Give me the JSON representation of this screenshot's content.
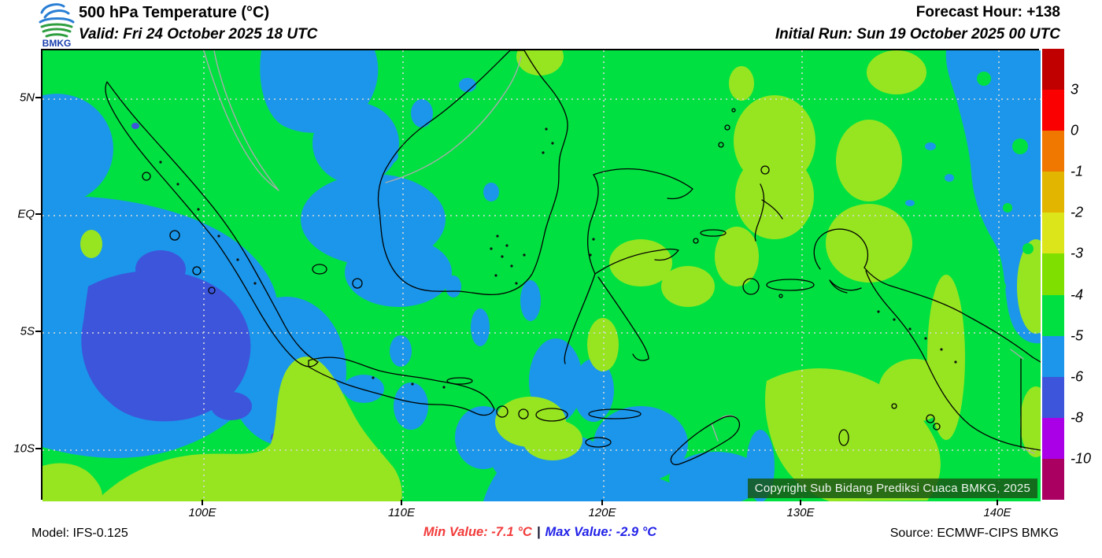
{
  "palette": {
    "green": "#00E141",
    "light_blue": "#1B96EA",
    "dark_blue": "#3D55DB",
    "yellow_green": "#97E520"
  },
  "header": {
    "logo_text": "BMKG",
    "title": "500 hPa Temperature (°C)",
    "valid": "Valid: Fri 24 October 2025 18 UTC",
    "forecast_hour": "Forecast Hour: +138",
    "initial_run": "Initial Run: Sun 19 October 2025 00 UTC"
  },
  "map": {
    "copyright": "Copyright Sub Bidang Prediksi Cuaca BMKG, 2025",
    "x_ticks": [
      "100E",
      "110E",
      "120E",
      "130E",
      "140E"
    ],
    "y_ticks": [
      "5N",
      "EQ",
      "5S",
      "10S"
    ]
  },
  "colorbar": {
    "tick_labels": [
      "3",
      "0",
      "-1",
      "-2",
      "-3",
      "-4",
      "-5",
      "-6",
      "-8",
      "-10"
    ],
    "colors": [
      "#C00000",
      "#FA0000",
      "#F07800",
      "#E2B600",
      "#DCE41A",
      "#7FE000",
      "#00E141",
      "#1B96EA",
      "#3D55DB",
      "#AA00E8",
      "#AA0062"
    ]
  },
  "footer": {
    "model": "Model: IFS-0.125",
    "min_label": "Min Value: -7.1 °C",
    "separator": "|",
    "max_label": "Max Value: -2.9 °C",
    "source": "Source: ECMWF-CIPS BMKG"
  },
  "chart_data": {
    "type": "heatmap",
    "title": "500 hPa Temperature (°C)",
    "units": "°C",
    "region": "Indonesia (approx. 92E-142E, 7N-12S)",
    "min_value": -7.1,
    "max_value": -2.9,
    "forecast_hour": 138,
    "valid_time": "Fri 24 October 2025 18 UTC",
    "initial_run": "Sun 19 October 2025 00 UTC",
    "x_axis_ticks": [
      "100E",
      "110E",
      "120E",
      "130E",
      "140E"
    ],
    "y_axis_ticks": [
      "5N",
      "EQ",
      "5S",
      "10S"
    ],
    "scale_boundaries": [
      3,
      0,
      -1,
      -2,
      -3,
      -4,
      -5,
      -6,
      -8,
      -10
    ],
    "scale_colors": [
      "#C00000",
      "#FA0000",
      "#F07800",
      "#E2B600",
      "#DCE41A",
      "#7FE000",
      "#00E141",
      "#1B96EA",
      "#3D55DB",
      "#AA00E8",
      "#AA0062"
    ],
    "field_summary": "Dominant -5 to -4 °C (green) across Indonesia; -6 to -5 °C (light blue) west of Sumatra and northeast Pacific corner; -8 to -6 °C (blue) core southwest of Sumatra; -4 to -3 °C (yellow-green) patches south of Java, around Sulawesi and Arafura Sea"
  }
}
